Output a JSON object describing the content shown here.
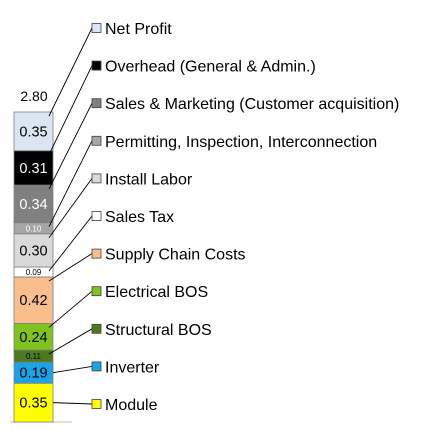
{
  "chart_data": {
    "type": "bar",
    "stacked": true,
    "title": "",
    "xlabel": "",
    "ylabel": "",
    "total_label": "2.80",
    "series": [
      {
        "name": "Module",
        "value": 0.35,
        "label": "0.35",
        "color": "#ffff00",
        "text_color": "#000000"
      },
      {
        "name": "Inverter",
        "value": 0.19,
        "label": "0.19",
        "color": "#1aa3e8",
        "text_color": "#000000"
      },
      {
        "name": "Structural BOS",
        "value": 0.11,
        "label": "0.11",
        "color": "#4d7a1f",
        "text_color": "#000000"
      },
      {
        "name": "Electrical BOS",
        "value": 0.24,
        "label": "0.24",
        "color": "#7fc31c",
        "text_color": "#000000"
      },
      {
        "name": "Supply Chain Costs",
        "value": 0.42,
        "label": "0.42",
        "color": "#f9be8c",
        "text_color": "#000000"
      },
      {
        "name": "Sales Tax",
        "value": 0.09,
        "label": "0.09",
        "color": "#ffffff",
        "text_color": "#000000"
      },
      {
        "name": "Install Labor",
        "value": 0.3,
        "label": "0.30",
        "color": "#d9d9d9",
        "text_color": "#000000"
      },
      {
        "name": "Permitting, Inspection, Interconnection",
        "value": 0.1,
        "label": "0.10",
        "color": "#a6a6a6",
        "text_color": "#ffffff"
      },
      {
        "name": "Sales & Marketing (Customer acquisition)",
        "value": 0.34,
        "label": "0.34",
        "color": "#808080",
        "text_color": "#ffffff"
      },
      {
        "name": "Overhead (General & Admin.)",
        "value": 0.31,
        "label": "0.31",
        "color": "#000000",
        "text_color": "#ffffff"
      },
      {
        "name": "Net Profit",
        "value": 0.35,
        "label": "0.35",
        "color": "#dce6f2",
        "text_color": "#000000"
      }
    ]
  }
}
